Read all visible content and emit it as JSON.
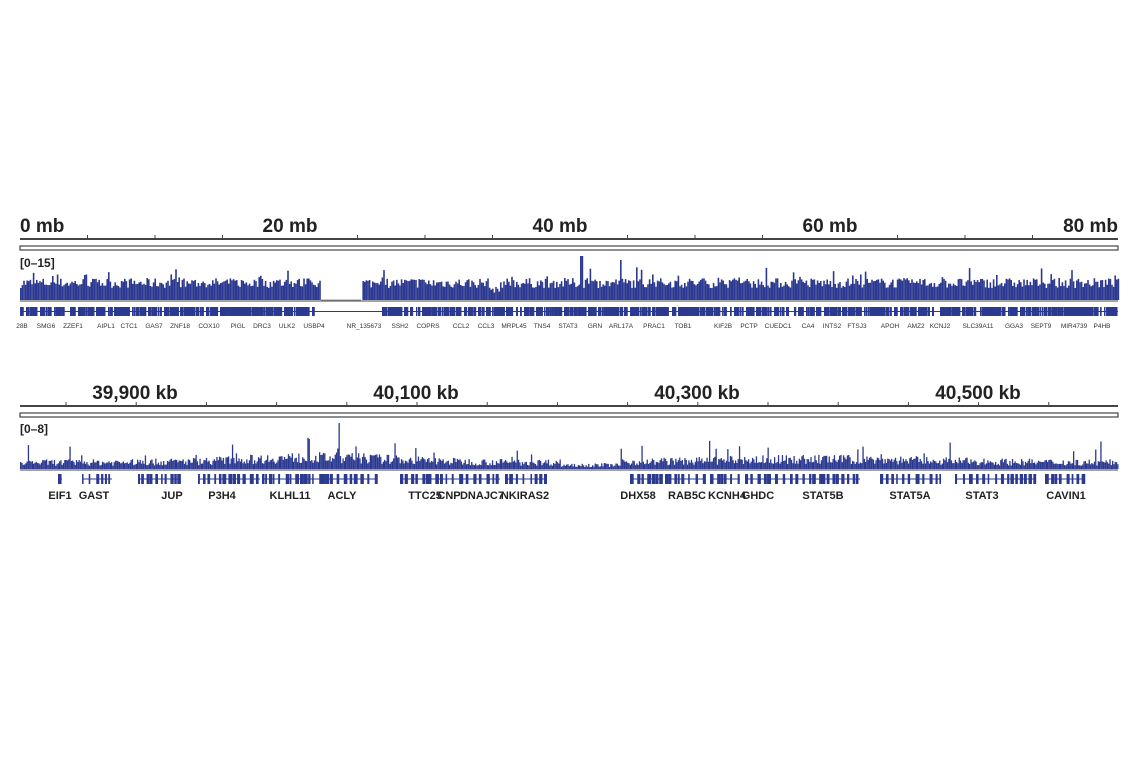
{
  "colors": {
    "signal": "#2b3990",
    "ruler": "#444444",
    "text": "#222222"
  },
  "chart_data": [
    {
      "type": "bar",
      "description_of_track": "genome coverage track",
      "ruler_labels": [
        "0 mb",
        "20 mb",
        "40 mb",
        "60 mb",
        "80 mb"
      ],
      "xlim_mb": [
        0,
        81
      ],
      "data_range": "[0–15]",
      "ylim": [
        0,
        15
      ],
      "gap_mb": [
        22.2,
        25.3
      ],
      "genes": [
        "28B",
        "SMG6",
        "ZZEF1",
        "AIPL1",
        "CTC1",
        "GAS7",
        "ZNF18",
        "COX10",
        "PIGL",
        "DRC3",
        "ULK2",
        "USBP4",
        "NR_135673",
        "SSH2",
        "COPRS",
        "CCL2",
        "CCL3",
        "MRPL45",
        "TNS4",
        "STAT3",
        "GRN",
        "ARL17A",
        "PRAC1",
        "TOB1",
        "KIF2B",
        "PCTP",
        "CUEDC1",
        "CA4",
        "INTS2",
        "FTSJ3",
        "APOH",
        "AMZ2",
        "KCNJ2",
        "SLC39A11",
        "GGA3",
        "SEPT9",
        "MIR4739",
        "P4HB"
      ]
    },
    {
      "type": "bar",
      "description_of_track": "zoomed coverage track",
      "ruler_labels": [
        "39,900 kb",
        "40,100 kb",
        "40,300 kb",
        "40,500 kb"
      ],
      "data_range": "[0–8]",
      "ylim": [
        0,
        8
      ],
      "genes": [
        "EIF1",
        "GAST",
        "JUP",
        "P3H4",
        "KLHL11",
        "ACLY",
        "TTC25",
        "CNP",
        "DNAJC7",
        "NKIRAS2",
        "DHX58",
        "RAB5C",
        "KCNH4",
        "GHDC",
        "STAT5B",
        "STAT5A",
        "STAT3",
        "CAVIN1"
      ]
    }
  ]
}
